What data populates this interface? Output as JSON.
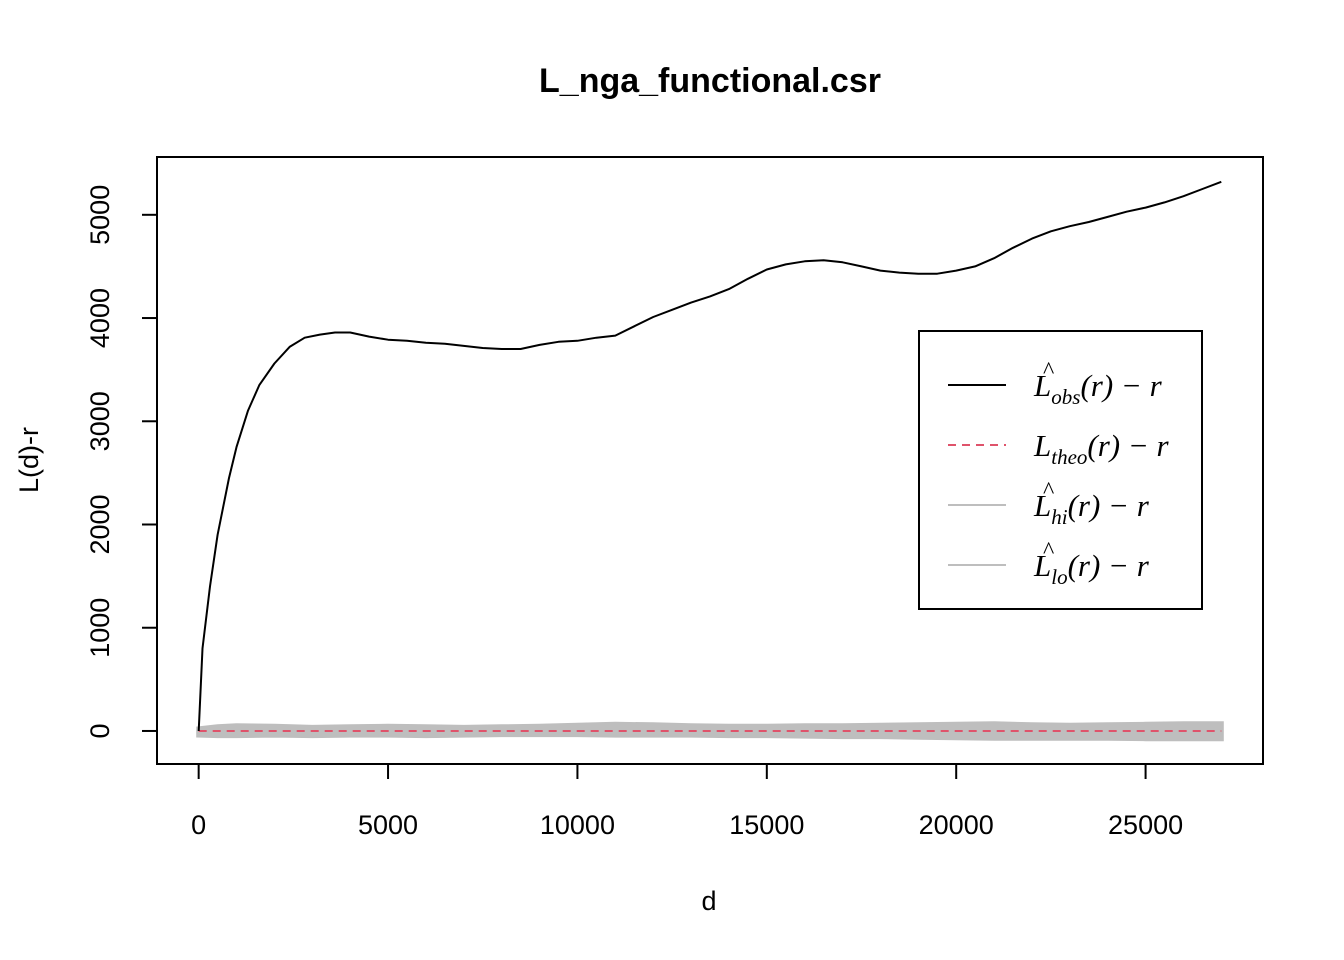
{
  "chart_data": {
    "type": "line",
    "title": "L_nga_functional.csr",
    "xlabel": "d",
    "ylabel": "L(d)-r",
    "xlim": [
      -1100,
      28100
    ],
    "ylim": [
      -320,
      5560
    ],
    "xticks": [
      0,
      5000,
      10000,
      15000,
      20000,
      25000
    ],
    "yticks": [
      0,
      1000,
      2000,
      3000,
      4000,
      5000
    ],
    "grid": false,
    "legend_position": "right",
    "colors": {
      "obs": "#000000",
      "theo": "#DF536B",
      "envelope": "#BEBEBE"
    },
    "series": [
      {
        "key": "obs",
        "style": "solid",
        "x": [
          0,
          100,
          300,
          500,
          800,
          1000,
          1300,
          1600,
          2000,
          2400,
          2800,
          3200,
          3600,
          4000,
          4500,
          5000,
          5500,
          6000,
          6500,
          7000,
          7500,
          8000,
          8500,
          9000,
          9500,
          10000,
          10500,
          11000,
          11500,
          12000,
          12500,
          13000,
          13500,
          14000,
          14500,
          15000,
          15500,
          16000,
          16500,
          17000,
          17500,
          18000,
          18500,
          19000,
          19500,
          20000,
          20500,
          21000,
          21500,
          22000,
          22500,
          23000,
          23500,
          24000,
          24500,
          25000,
          25500,
          26000,
          26500,
          27000
        ],
        "y": [
          0,
          800,
          1400,
          1900,
          2450,
          2750,
          3100,
          3350,
          3560,
          3720,
          3810,
          3840,
          3860,
          3860,
          3820,
          3790,
          3780,
          3760,
          3750,
          3730,
          3710,
          3700,
          3700,
          3740,
          3770,
          3780,
          3810,
          3830,
          3920,
          4010,
          4080,
          4150,
          4210,
          4280,
          4380,
          4470,
          4520,
          4550,
          4560,
          4540,
          4500,
          4460,
          4440,
          4430,
          4430,
          4460,
          4500,
          4580,
          4680,
          4770,
          4840,
          4890,
          4930,
          4980,
          5030,
          5070,
          5120,
          5180,
          5250,
          5320
        ]
      },
      {
        "key": "theo",
        "style": "dashed",
        "x": [
          0,
          27000
        ],
        "y": [
          0,
          0
        ]
      },
      {
        "key": "hi",
        "style": "solid",
        "x": [
          0,
          500,
          1000,
          2000,
          3000,
          4000,
          5000,
          6000,
          7000,
          8000,
          9000,
          10000,
          11000,
          12000,
          13000,
          14000,
          15000,
          16000,
          17000,
          18000,
          19000,
          20000,
          21000,
          22000,
          23000,
          24000,
          25000,
          26000,
          27000
        ],
        "y": [
          20,
          40,
          50,
          45,
          35,
          40,
          45,
          40,
          35,
          40,
          45,
          55,
          65,
          60,
          50,
          45,
          45,
          50,
          50,
          55,
          60,
          65,
          70,
          60,
          55,
          60,
          65,
          70,
          70
        ]
      },
      {
        "key": "lo",
        "style": "solid",
        "x": [
          0,
          500,
          1000,
          2000,
          3000,
          4000,
          5000,
          6000,
          7000,
          8000,
          9000,
          10000,
          11000,
          12000,
          13000,
          14000,
          15000,
          16000,
          17000,
          18000,
          19000,
          20000,
          21000,
          22000,
          23000,
          24000,
          25000,
          26000,
          27000
        ],
        "y": [
          -40,
          -45,
          -45,
          -40,
          -45,
          -40,
          -40,
          -45,
          -40,
          -35,
          -35,
          -35,
          -40,
          -40,
          -40,
          -45,
          -45,
          -50,
          -55,
          -55,
          -60,
          -65,
          -70,
          -70,
          -70,
          -70,
          -75,
          -75,
          -75
        ]
      }
    ],
    "legend": [
      {
        "key": "obs",
        "base": "L",
        "hat": "^",
        "sub": "obs",
        "rest": "(r) − r",
        "style": "solid"
      },
      {
        "key": "theo",
        "base": "L",
        "hat": "",
        "sub": "theo",
        "rest": "(r) − r",
        "style": "dashed"
      },
      {
        "key": "hi",
        "base": "L",
        "hat": "^",
        "sub": "hi",
        "rest": "(r) − r",
        "style": "solid"
      },
      {
        "key": "lo",
        "base": "L",
        "hat": "^",
        "sub": "lo",
        "rest": "(r) − r",
        "style": "solid"
      }
    ]
  }
}
